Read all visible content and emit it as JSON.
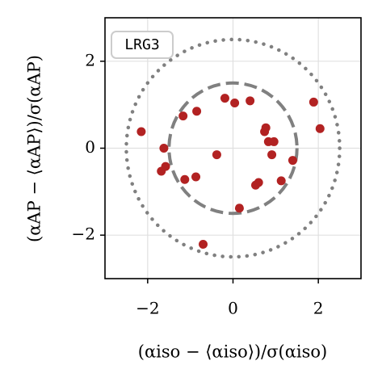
{
  "chart_data": {
    "type": "scatter",
    "annotation": "LRG3",
    "x_label": "(αiso − ⟨αiso⟩)/σ(αiso)",
    "y_label": "(αAP − ⟨αAP⟩)/σ(αAP)",
    "xlim": [
      -3,
      3
    ],
    "ylim": [
      -3,
      3
    ],
    "xticks": [
      {
        "value": -2,
        "label": "−2"
      },
      0,
      2
    ],
    "yticks": [
      {
        "value": -2,
        "label": "−2"
      },
      0,
      2
    ],
    "grid": true,
    "circles": [
      {
        "radius": 1.5,
        "style": "dashed"
      },
      {
        "radius": 2.5,
        "style": "dotted"
      }
    ],
    "series": [
      {
        "color": "#b22222",
        "x": [
          -2.15,
          -1.62,
          -1.68,
          -1.58,
          -1.17,
          -0.85,
          -1.13,
          -0.87,
          -0.38,
          -0.19,
          0.04,
          0.4,
          0.15,
          -0.7,
          0.53,
          0.6,
          0.74,
          0.77,
          0.83,
          0.96,
          0.91,
          1.13,
          1.4,
          1.89,
          2.04
        ],
        "values": [
          0.38,
          0.0,
          -0.53,
          -0.42,
          0.74,
          0.85,
          -0.72,
          -0.66,
          -0.15,
          1.15,
          1.04,
          1.09,
          -1.38,
          -2.21,
          -0.85,
          -0.79,
          0.38,
          0.47,
          0.15,
          0.15,
          -0.15,
          -0.75,
          -0.28,
          1.06,
          0.45
        ]
      }
    ]
  }
}
